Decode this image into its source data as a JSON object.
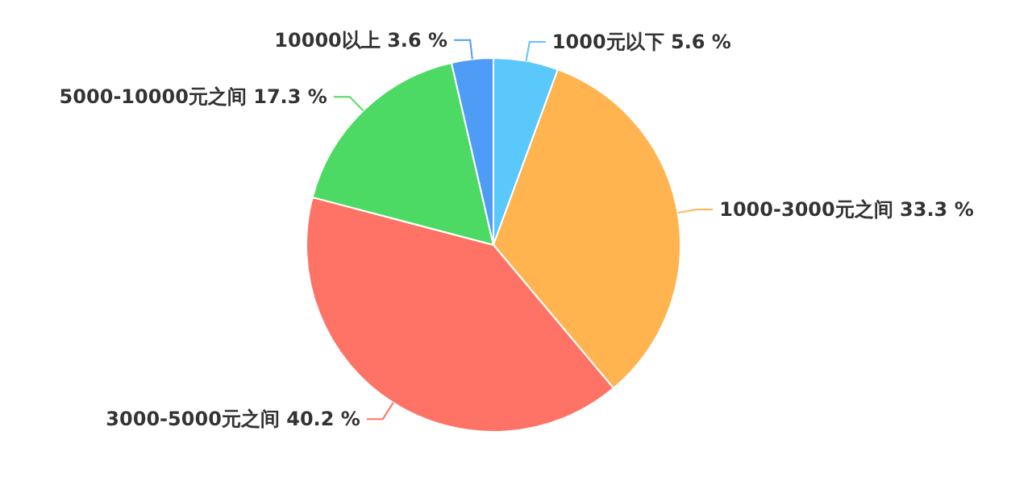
{
  "chart_data": {
    "type": "pie",
    "categories": [
      "1000元以下",
      "1000-3000元之间",
      "3000-5000元之间",
      "5000-10000元之间",
      "10000以上"
    ],
    "values": [
      5.6,
      33.3,
      40.2,
      17.3,
      3.6
    ],
    "value_labels": [
      "5.6 %",
      "33.3 %",
      "40.2 %",
      "17.3 %",
      "3.6 %"
    ],
    "colors": [
      "#5ac8fa",
      "#ffb44f",
      "#ff7266",
      "#4cd964",
      "#4f9cf7"
    ],
    "legend": false
  }
}
